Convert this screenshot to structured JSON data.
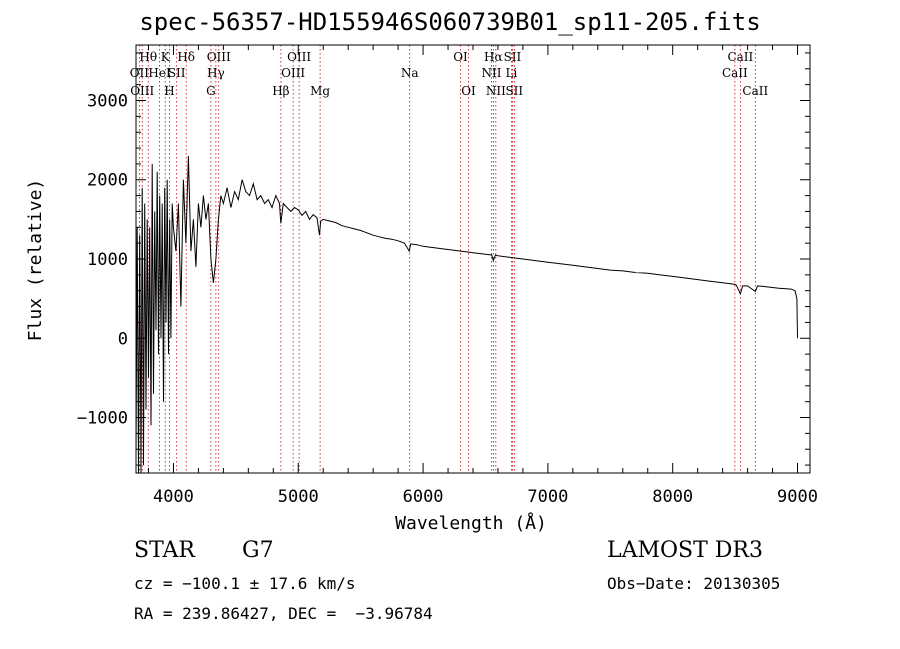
{
  "chart_data": {
    "type": "line",
    "title": "spec-56357-HD155946S060739B01_sp11-205.fits",
    "xlabel": "Wavelength (Å)",
    "ylabel": "Flux (relative)",
    "xlim": [
      3700,
      9100
    ],
    "ylim": [
      -1700,
      3700
    ],
    "xticks": [
      4000,
      5000,
      6000,
      7000,
      8000,
      9000
    ],
    "yticks": [
      -1000,
      0,
      1000,
      2000,
      3000
    ],
    "series": [
      {
        "name": "flux",
        "x": [
          3700,
          3710,
          3720,
          3730,
          3740,
          3750,
          3760,
          3770,
          3780,
          3790,
          3800,
          3810,
          3820,
          3830,
          3840,
          3850,
          3860,
          3870,
          3880,
          3890,
          3900,
          3910,
          3920,
          3930,
          3940,
          3950,
          3960,
          3970,
          3980,
          3990,
          4000,
          4020,
          4040,
          4060,
          4080,
          4100,
          4120,
          4140,
          4160,
          4180,
          4200,
          4220,
          4240,
          4260,
          4280,
          4300,
          4320,
          4340,
          4360,
          4380,
          4400,
          4430,
          4460,
          4490,
          4520,
          4550,
          4580,
          4610,
          4640,
          4670,
          4700,
          4730,
          4760,
          4790,
          4820,
          4850,
          4860,
          4880,
          4910,
          4940,
          4970,
          5000,
          5030,
          5060,
          5090,
          5120,
          5150,
          5170,
          5180,
          5200,
          5250,
          5300,
          5350,
          5400,
          5450,
          5500,
          5550,
          5600,
          5650,
          5700,
          5750,
          5800,
          5850,
          5890,
          5900,
          5950,
          6000,
          6050,
          6100,
          6150,
          6200,
          6250,
          6300,
          6350,
          6400,
          6450,
          6500,
          6550,
          6563,
          6580,
          6600,
          6650,
          6700,
          6750,
          6800,
          6900,
          7000,
          7100,
          7200,
          7300,
          7400,
          7500,
          7600,
          7700,
          7800,
          7900,
          8000,
          8100,
          8200,
          8300,
          8400,
          8498,
          8510,
          8542,
          8560,
          8600,
          8662,
          8680,
          8750,
          8850,
          8950,
          8980,
          8995,
          9000
        ],
        "values": [
          -1500,
          1400,
          -1700,
          1300,
          -1700,
          1900,
          -1600,
          1700,
          -900,
          1500,
          -500,
          1400,
          -1100,
          2200,
          -700,
          1600,
          100,
          2100,
          -200,
          1800,
          0,
          1700,
          -800,
          1900,
          200,
          2000,
          -200,
          1500,
          0,
          1700,
          1400,
          1100,
          1700,
          400,
          2000,
          1200,
          2300,
          1100,
          1500,
          900,
          1700,
          1400,
          1800,
          1500,
          1700,
          1000,
          700,
          1000,
          1500,
          1800,
          1700,
          1900,
          1650,
          1850,
          1750,
          2000,
          1850,
          1800,
          1950,
          1750,
          1800,
          1700,
          1750,
          1650,
          1800,
          1700,
          1450,
          1700,
          1650,
          1600,
          1650,
          1620,
          1550,
          1600,
          1500,
          1560,
          1520,
          1300,
          1480,
          1500,
          1480,
          1460,
          1420,
          1400,
          1380,
          1360,
          1330,
          1300,
          1280,
          1260,
          1250,
          1230,
          1200,
          1100,
          1190,
          1180,
          1160,
          1150,
          1140,
          1130,
          1120,
          1110,
          1100,
          1090,
          1080,
          1070,
          1060,
          1050,
          980,
          1050,
          1040,
          1030,
          1020,
          1010,
          1000,
          980,
          960,
          940,
          920,
          900,
          880,
          860,
          850,
          830,
          820,
          800,
          780,
          760,
          740,
          720,
          700,
          680,
          670,
          560,
          660,
          660,
          590,
          660,
          650,
          630,
          620,
          600,
          500,
          0
        ]
      }
    ],
    "lines": [
      {
        "x": 3727,
        "labels": [
          "OII"
        ],
        "row": 1
      },
      {
        "x": 3750,
        "labels": [
          "OIII"
        ],
        "row": 2
      },
      {
        "x": 3798,
        "labels": [
          "Hθ"
        ],
        "row": 0
      },
      {
        "x": 3889,
        "labels": [
          "HeI"
        ],
        "row": 1
      },
      {
        "x": 3934,
        "labels": [
          "K"
        ],
        "row": 0
      },
      {
        "x": 3968,
        "labels": [
          "H"
        ],
        "row": 2
      },
      {
        "x": 4026,
        "labels": [
          "SII"
        ],
        "row": 1
      },
      {
        "x": 4102,
        "labels": [
          "Hδ"
        ],
        "row": 0
      },
      {
        "x": 4300,
        "labels": [
          "G"
        ],
        "row": 2
      },
      {
        "x": 4340,
        "labels": [
          "Hγ"
        ],
        "row": 1
      },
      {
        "x": 4363,
        "labels": [
          "OIII"
        ],
        "row": 0
      },
      {
        "x": 4861,
        "labels": [
          "Hβ"
        ],
        "row": 2
      },
      {
        "x": 4959,
        "labels": [
          "OIII"
        ],
        "row": 1
      },
      {
        "x": 5007,
        "labels": [
          "OIII"
        ],
        "row": 0
      },
      {
        "x": 5175,
        "labels": [
          "Mg"
        ],
        "row": 2
      },
      {
        "x": 5893,
        "labels": [
          "Na"
        ],
        "row": 1
      },
      {
        "x": 6300,
        "labels": [
          "OI"
        ],
        "row": 0
      },
      {
        "x": 6364,
        "labels": [
          "OI"
        ],
        "row": 2
      },
      {
        "x": 6548,
        "labels": [
          "NII"
        ],
        "row": 1
      },
      {
        "x": 6563,
        "labels": [
          "Hα"
        ],
        "row": 0
      },
      {
        "x": 6583,
        "labels": [
          "NII"
        ],
        "row": 2
      },
      {
        "x": 6708,
        "labels": [
          "Li"
        ],
        "row": 1
      },
      {
        "x": 6716,
        "labels": [
          "SII"
        ],
        "row": 0
      },
      {
        "x": 6731,
        "labels": [
          "SII"
        ],
        "row": 2
      },
      {
        "x": 8498,
        "labels": [
          "CaII"
        ],
        "row": 1
      },
      {
        "x": 8542,
        "labels": [
          "CaII"
        ],
        "row": 0
      },
      {
        "x": 8662,
        "labels": [
          "CaII"
        ],
        "row": 2
      }
    ]
  },
  "info": {
    "class": "STAR",
    "subclass": "G7",
    "survey": "LAMOST DR3",
    "cz": "cz = −100.1 ± 17.6 km/s",
    "obsdate": "Obs−Date: 20130305",
    "radec": "RA = 239.86427, DEC =  −3.96784"
  }
}
